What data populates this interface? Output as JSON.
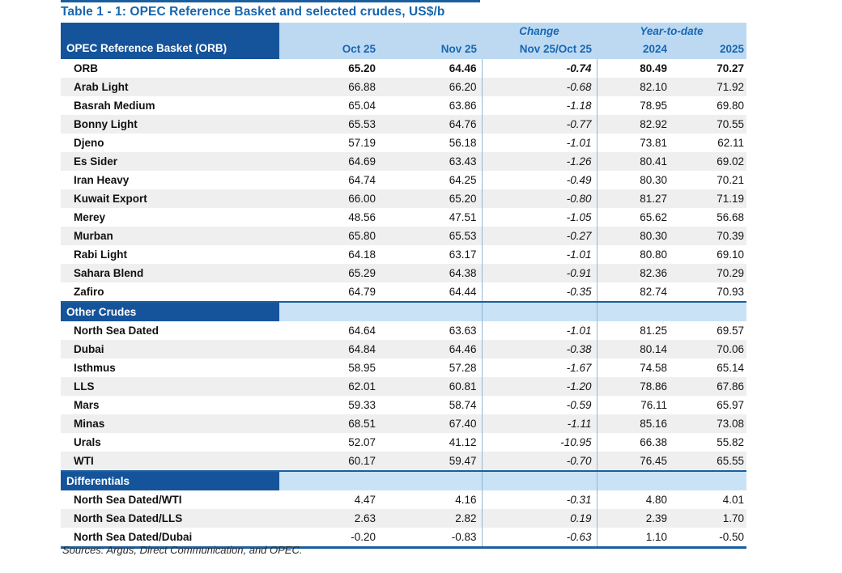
{
  "title": "Table 1 - 1: OPEC Reference Basket and selected crudes, US$/b",
  "sources": "Sources:  Argus, Direct Communication, and OPEC.",
  "colors": {
    "dark_blue": "#15549B",
    "header_light_blue": "#BDD9F1",
    "section_light_blue": "#C9E2F6",
    "stripe_gray": "#EFEFEF",
    "header_text_blue": "#1767B4",
    "rule_blue": "#1B5E9E",
    "separator_blue": "#8FB8D4"
  },
  "table": {
    "corner_label": "OPEC Reference Basket (ORB)",
    "group_headers": {
      "change": "Change",
      "ytd": "Year-to-date"
    },
    "columns": [
      "Oct 25",
      "Nov 25",
      "Nov 25/Oct 25",
      "2024",
      "2025"
    ],
    "sections": [
      {
        "label": "",
        "rows": [
          {
            "name": "ORB",
            "bold": true,
            "values": [
              "65.20",
              "64.46",
              "-0.74",
              "80.49",
              "70.27"
            ]
          },
          {
            "name": "Arab Light",
            "values": [
              "66.88",
              "66.20",
              "-0.68",
              "82.10",
              "71.92"
            ]
          },
          {
            "name": "Basrah Medium",
            "values": [
              "65.04",
              "63.86",
              "-1.18",
              "78.95",
              "69.80"
            ]
          },
          {
            "name": "Bonny Light",
            "values": [
              "65.53",
              "64.76",
              "-0.77",
              "82.92",
              "70.55"
            ]
          },
          {
            "name": "Djeno",
            "values": [
              "57.19",
              "56.18",
              "-1.01",
              "73.81",
              "62.11"
            ]
          },
          {
            "name": "Es Sider",
            "values": [
              "64.69",
              "63.43",
              "-1.26",
              "80.41",
              "69.02"
            ]
          },
          {
            "name": "Iran Heavy",
            "values": [
              "64.74",
              "64.25",
              "-0.49",
              "80.30",
              "70.21"
            ]
          },
          {
            "name": "Kuwait Export",
            "values": [
              "66.00",
              "65.20",
              "-0.80",
              "81.27",
              "71.19"
            ]
          },
          {
            "name": "Merey",
            "values": [
              "48.56",
              "47.51",
              "-1.05",
              "65.62",
              "56.68"
            ]
          },
          {
            "name": "Murban",
            "values": [
              "65.80",
              "65.53",
              "-0.27",
              "80.30",
              "70.39"
            ]
          },
          {
            "name": "Rabi Light",
            "values": [
              "64.18",
              "63.17",
              "-1.01",
              "80.80",
              "69.10"
            ]
          },
          {
            "name": "Sahara Blend",
            "values": [
              "65.29",
              "64.38",
              "-0.91",
              "82.36",
              "70.29"
            ]
          },
          {
            "name": "Zafiro",
            "values": [
              "64.79",
              "64.44",
              "-0.35",
              "82.74",
              "70.93"
            ]
          }
        ]
      },
      {
        "label": "Other Crudes",
        "rows": [
          {
            "name": "North Sea Dated",
            "values": [
              "64.64",
              "63.63",
              "-1.01",
              "81.25",
              "69.57"
            ]
          },
          {
            "name": "Dubai",
            "values": [
              "64.84",
              "64.46",
              "-0.38",
              "80.14",
              "70.06"
            ]
          },
          {
            "name": "Isthmus",
            "values": [
              "58.95",
              "57.28",
              "-1.67",
              "74.58",
              "65.14"
            ]
          },
          {
            "name": "LLS",
            "values": [
              "62.01",
              "60.81",
              "-1.20",
              "78.86",
              "67.86"
            ]
          },
          {
            "name": "Mars",
            "values": [
              "59.33",
              "58.74",
              "-0.59",
              "76.11",
              "65.97"
            ]
          },
          {
            "name": "Minas",
            "values": [
              "68.51",
              "67.40",
              "-1.11",
              "85.16",
              "73.08"
            ]
          },
          {
            "name": "Urals",
            "values": [
              "52.07",
              "41.12",
              "-10.95",
              "66.38",
              "55.82"
            ]
          },
          {
            "name": "WTI",
            "values": [
              "60.17",
              "59.47",
              "-0.70",
              "76.45",
              "65.55"
            ]
          }
        ]
      },
      {
        "label": "Differentials",
        "rows": [
          {
            "name": "North Sea Dated/WTI",
            "values": [
              "4.47",
              "4.16",
              "-0.31",
              "4.80",
              "4.01"
            ]
          },
          {
            "name": "North Sea Dated/LLS",
            "values": [
              "2.63",
              "2.82",
              "0.19",
              "2.39",
              "1.70"
            ]
          },
          {
            "name": "North Sea Dated/Dubai",
            "values": [
              "-0.20",
              "-0.83",
              "-0.63",
              "1.10",
              "-0.50"
            ]
          }
        ]
      }
    ]
  }
}
